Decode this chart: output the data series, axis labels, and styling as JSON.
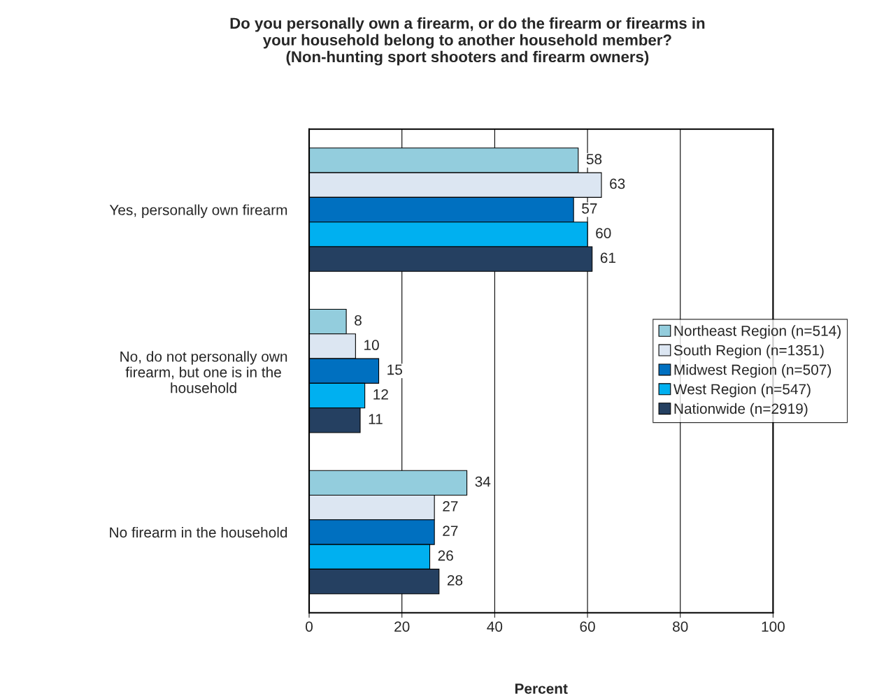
{
  "chart_data": {
    "type": "bar",
    "orientation": "horizontal",
    "title": "Do you personally own a firearm, or do the firearm or firearms in\nyour household belong to another household member?\n(Non-hunting sport shooters and firearm owners)",
    "xlabel": "Percent",
    "categories": [
      "Yes, personally own firearm",
      "No, do not personally own\nfirearm, but one is in the\nhousehold",
      "No firearm in the household"
    ],
    "series": [
      {
        "name": "Northeast Region (n=514)",
        "color": "#93cddd",
        "values": [
          58,
          8,
          34
        ]
      },
      {
        "name": "South Region (n=1351)",
        "color": "#dce6f2",
        "values": [
          63,
          10,
          27
        ]
      },
      {
        "name": "Midwest Region (n=507)",
        "color": "#0070c0",
        "values": [
          57,
          15,
          27
        ]
      },
      {
        "name": "West Region (n=547)",
        "color": "#00b0f0",
        "values": [
          60,
          12,
          26
        ]
      },
      {
        "name": "Nationwide (n=2919)",
        "color": "#254061",
        "values": [
          61,
          11,
          28
        ]
      }
    ],
    "xlim": [
      0,
      100
    ],
    "xticks": [
      0,
      20,
      40,
      60,
      80,
      100
    ],
    "grid": "x",
    "legend": "right",
    "data_labels": true
  }
}
